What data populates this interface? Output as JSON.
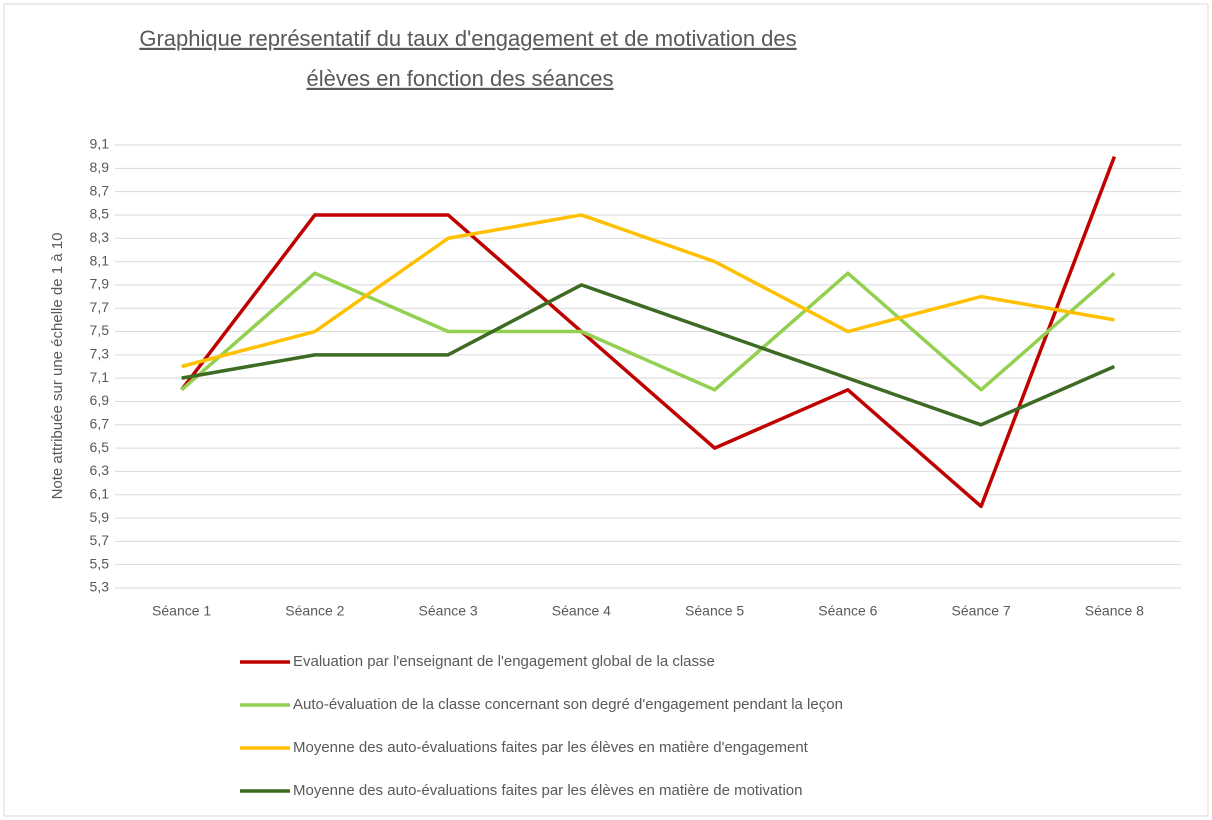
{
  "chart_data": {
    "type": "line",
    "title": [
      "Graphique représentatif du taux d'engagement et de motivation des",
      "élèves en fonction des séances"
    ],
    "y_label": "Note attribuée sur une échelle de 1 à 10",
    "categories": [
      "Séance 1",
      "Séance 2",
      "Séance 3",
      "Séance 4",
      "Séance 5",
      "Séance 6",
      "Séance 7",
      "Séance 8"
    ],
    "series": [
      {
        "name": "Evaluation par l'enseignant de l'engagement global de la classe",
        "color": "#c00000",
        "values": [
          7.0,
          8.5,
          8.5,
          7.5,
          6.5,
          7.0,
          6.0,
          9.0
        ]
      },
      {
        "name": "Auto-évaluation de la classe concernant son degré d'engagement pendant la leçon",
        "color": "#92d050",
        "values": [
          7.0,
          8.0,
          7.5,
          7.5,
          7.0,
          8.0,
          7.0,
          8.0
        ]
      },
      {
        "name": "Moyenne des auto-évaluations faites par les élèves en matière d'engagement",
        "color": "#ffc000",
        "values": [
          7.2,
          7.5,
          8.3,
          8.5,
          8.1,
          7.5,
          7.8,
          7.6
        ]
      },
      {
        "name": "Moyenne des auto-évaluations faites par les élèves en matière de motivation",
        "color": "#3e6b24",
        "values": [
          7.1,
          7.3,
          7.3,
          7.9,
          7.5,
          7.1,
          6.7,
          7.2
        ]
      }
    ],
    "ylim": [
      5.3,
      9.1
    ],
    "yticks": [
      {
        "value": 5.3,
        "label": "5,3"
      },
      {
        "value": 5.5,
        "label": "5,5"
      },
      {
        "value": 5.7,
        "label": "5,7"
      },
      {
        "value": 5.9,
        "label": "5,9"
      },
      {
        "value": 6.1,
        "label": "6,1"
      },
      {
        "value": 6.3,
        "label": "6,3"
      },
      {
        "value": 6.5,
        "label": "6,5"
      },
      {
        "value": 6.7,
        "label": "6,7"
      },
      {
        "value": 6.9,
        "label": "6,9"
      },
      {
        "value": 7.1,
        "label": "7,1"
      },
      {
        "value": 7.3,
        "label": "7,3"
      },
      {
        "value": 7.5,
        "label": "7,5"
      },
      {
        "value": 7.7,
        "label": "7,7"
      },
      {
        "value": 7.9,
        "label": "7,9"
      },
      {
        "value": 8.1,
        "label": "8,1"
      },
      {
        "value": 8.3,
        "label": "8,3"
      },
      {
        "value": 8.5,
        "label": "8,5"
      },
      {
        "value": 8.7,
        "label": "8,7"
      },
      {
        "value": 8.9,
        "label": "8,9"
      },
      {
        "value": 9.1,
        "label": "9,1"
      }
    ],
    "grid": true,
    "legend": "bottom"
  }
}
